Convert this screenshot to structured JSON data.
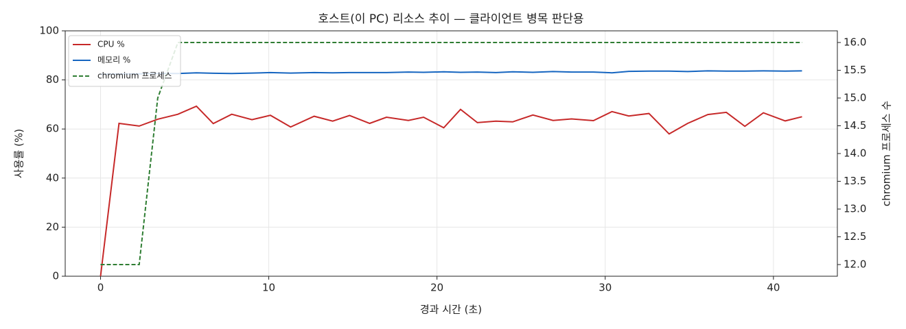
{
  "chart_data": {
    "type": "line",
    "title": "호스트(이 PC) 리소스 추이 — 클라이언트 병목 판단용",
    "x_label": "경과 시간 (초)",
    "y_label": "사용률 (%)",
    "y2_label": "chromium 프로세스 수",
    "x": [
      0,
      1.1,
      2.3,
      3.4,
      4.6,
      5.7,
      6.7,
      7.8,
      9.0,
      10.1,
      11.3,
      12.7,
      13.8,
      14.8,
      16.0,
      17.0,
      18.3,
      19.2,
      20.4,
      21.4,
      22.4,
      23.5,
      24.5,
      25.7,
      26.9,
      28.0,
      29.3,
      30.4,
      31.4,
      32.6,
      33.8,
      34.9,
      36.1,
      37.2,
      38.3,
      39.4,
      40.7,
      41.7
    ],
    "series": [
      {
        "name": "CPU %",
        "color": "#c62828",
        "dashed": false,
        "axis": "y",
        "values": [
          0,
          62.3,
          61.2,
          64,
          66,
          69.3,
          62.2,
          66,
          63.8,
          65.6,
          60.8,
          65.2,
          63.2,
          65.5,
          62.3,
          64.8,
          63.5,
          64.8,
          60.5,
          68,
          62.6,
          63.2,
          62.9,
          65.7,
          63.5,
          64.1,
          63.4,
          67.1,
          65.3,
          66.3,
          58,
          62.3,
          65.9,
          66.8,
          61.1,
          66.6,
          63.3,
          65
        ]
      },
      {
        "name": "메모리 %",
        "color": "#1565c0",
        "dashed": false,
        "axis": "y",
        "values": [
          82.3,
          82.4,
          82.5,
          82.6,
          82.6,
          82.9,
          82.7,
          82.6,
          82.8,
          83.0,
          82.8,
          83.0,
          82.9,
          83.0,
          83.0,
          83.0,
          83.2,
          83.1,
          83.3,
          83.1,
          83.2,
          83.0,
          83.3,
          83.1,
          83.4,
          83.2,
          83.2,
          82.9,
          83.5,
          83.6,
          83.6,
          83.4,
          83.7,
          83.6,
          83.6,
          83.7,
          83.6,
          83.7
        ]
      },
      {
        "name": "chromium 프로세스",
        "color": "#2e7d32",
        "dashed": true,
        "axis": "y2",
        "values": [
          12,
          12,
          12,
          15,
          16,
          16,
          16,
          16,
          16,
          16,
          16,
          16,
          16,
          16,
          16,
          16,
          16,
          16,
          16,
          16,
          16,
          16,
          16,
          16,
          16,
          16,
          16,
          16,
          16,
          16,
          16,
          16,
          16,
          16,
          16,
          16,
          16,
          16
        ]
      }
    ],
    "xlim": [
      -2.1,
      43.8
    ],
    "xticks": [
      0,
      10,
      20,
      30,
      40
    ],
    "ylim": [
      0,
      100
    ],
    "yticks": [
      0,
      20,
      40,
      60,
      80,
      100
    ],
    "y2lim": [
      11.79,
      16.21
    ],
    "y2ticks": [
      {
        "value": 12,
        "label": "12.0"
      },
      {
        "value": 12.5,
        "label": "12.5"
      },
      {
        "value": 13,
        "label": "13.0"
      },
      {
        "value": 13.5,
        "label": "13.5"
      },
      {
        "value": 14,
        "label": "14.0"
      },
      {
        "value": 14.5,
        "label": "14.5"
      },
      {
        "value": 15,
        "label": "15.0"
      },
      {
        "value": 15.5,
        "label": "15.5"
      },
      {
        "value": 16,
        "label": "16.0"
      }
    ],
    "grid": true,
    "legend": "upper-left"
  }
}
